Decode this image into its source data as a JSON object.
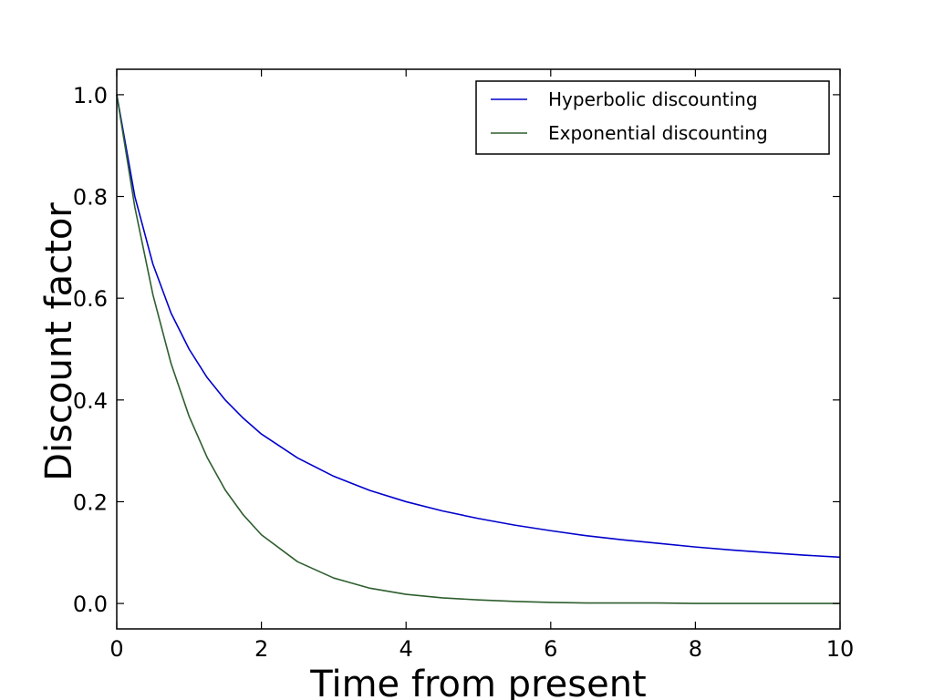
{
  "chart_data": {
    "type": "line",
    "xlabel": "Time from present",
    "ylabel": "Discount factor",
    "xlim": [
      0,
      10
    ],
    "ylim": [
      -0.05,
      1.05
    ],
    "xticks": [
      0,
      2,
      4,
      6,
      8,
      10
    ],
    "xtick_labels": [
      "0",
      "2",
      "4",
      "6",
      "8",
      "10"
    ],
    "yticks": [
      0.0,
      0.2,
      0.4,
      0.6,
      0.8,
      1.0
    ],
    "ytick_labels": [
      "0.0",
      "0.2",
      "0.4",
      "0.6",
      "0.8",
      "1.0"
    ],
    "grid": false,
    "legend_position": "top-right",
    "x": [
      0,
      0.25,
      0.5,
      0.75,
      1,
      1.25,
      1.5,
      1.75,
      2,
      2.5,
      3,
      3.5,
      4,
      4.5,
      5,
      5.5,
      6,
      6.5,
      7,
      7.5,
      8,
      8.5,
      9,
      9.5,
      10
    ],
    "series": [
      {
        "name": "Hyperbolic discounting",
        "color": "#0000cc",
        "values": [
          1.0,
          0.8,
          0.667,
          0.571,
          0.5,
          0.444,
          0.4,
          0.364,
          0.333,
          0.286,
          0.25,
          0.222,
          0.2,
          0.182,
          0.167,
          0.154,
          0.143,
          0.133,
          0.125,
          0.118,
          0.111,
          0.105,
          0.1,
          0.095,
          0.091
        ]
      },
      {
        "name": "Exponential discounting",
        "color": "#2e5e2e",
        "values": [
          1.0,
          0.779,
          0.607,
          0.472,
          0.368,
          0.287,
          0.223,
          0.174,
          0.135,
          0.082,
          0.05,
          0.03,
          0.018,
          0.011,
          0.007,
          0.004,
          0.002,
          0.001,
          0.001,
          0.001,
          0.0,
          0.0,
          0.0,
          0.0,
          0.0
        ]
      }
    ]
  }
}
